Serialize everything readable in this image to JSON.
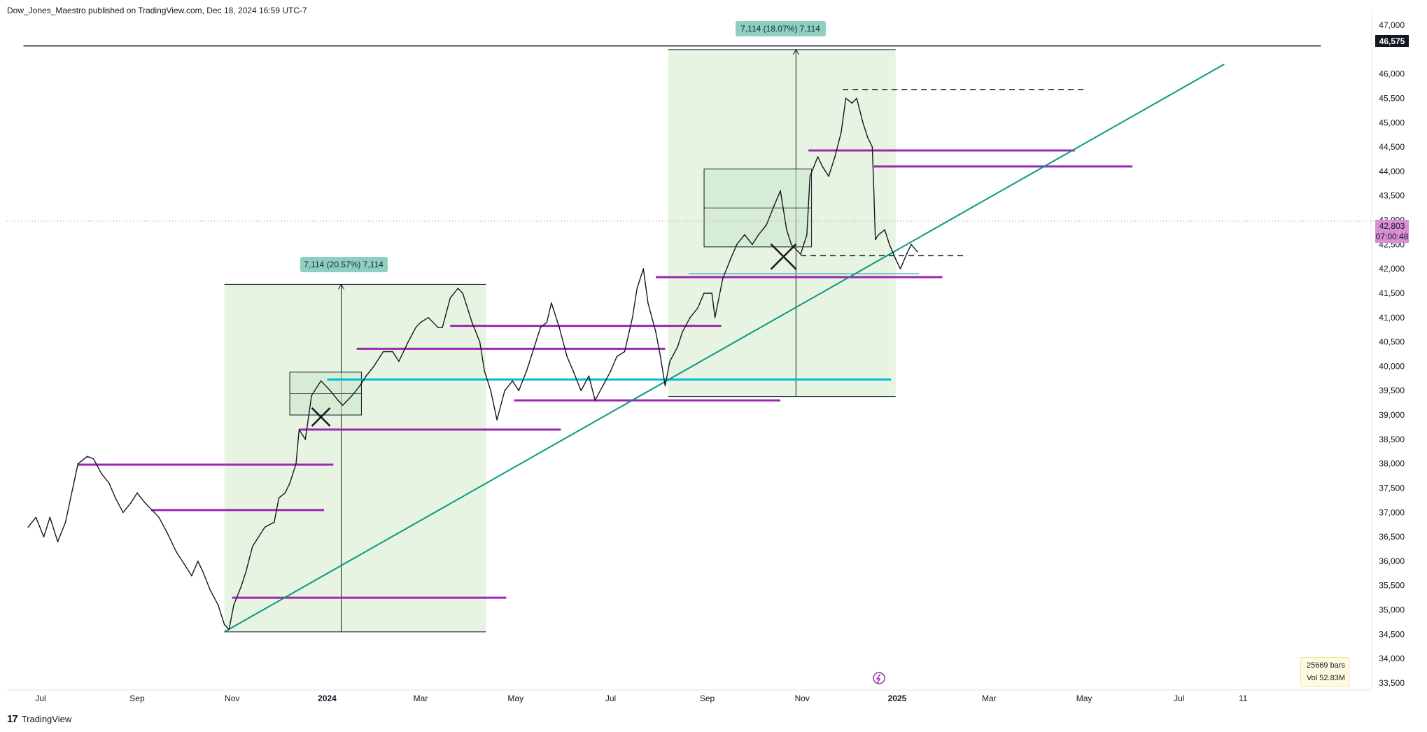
{
  "header": {
    "publisher_line": "Dow_Jones_Maestro published on TradingView.com, Dec 18, 2024 16:59 UTC-7"
  },
  "footer": {
    "brand": "TradingView",
    "logo_text": "17"
  },
  "info_box": {
    "bars": "25669 bars",
    "volume": "Vol 52.83M"
  },
  "price_labels": {
    "top_line": "46,575",
    "last_price": "42,803",
    "countdown": "07:00:48"
  },
  "badges": [
    {
      "text": "7,114 (20.57%) 7,114"
    },
    {
      "text": "7,114 (18.07%) 7,114"
    }
  ],
  "colors": {
    "green_zone": "#dff0d8",
    "purple_level": "#9c27b0",
    "cyan_level": "#00bcd4",
    "trendline": "#089981",
    "badge_bg": "#8fcfc2",
    "last_price_bg": "#d98fd8"
  },
  "chart_data": {
    "type": "line",
    "title": "",
    "xlabel": "",
    "ylabel": "",
    "ylim": [
      33500,
      47000
    ],
    "y_ticks": [
      33500,
      34000,
      34500,
      35000,
      35500,
      36000,
      36500,
      37000,
      37500,
      38000,
      38500,
      39000,
      39500,
      40000,
      40500,
      41000,
      41500,
      42000,
      42500,
      43000,
      43500,
      44000,
      44500,
      45000,
      45500,
      46000,
      47000
    ],
    "y_tick_labels": [
      "33,500",
      "34,000",
      "34,500",
      "35,000",
      "35,500",
      "36,000",
      "36,500",
      "37,000",
      "37,500",
      "38,000",
      "38,500",
      "39,000",
      "39,500",
      "40,000",
      "40,500",
      "41,000",
      "41,500",
      "42,000",
      "42,500",
      "43,000",
      "43,500",
      "44,000",
      "44,500",
      "45,000",
      "45,500",
      "46,000",
      "47,000"
    ],
    "x_labels": [
      "Jul",
      "Sep",
      "Nov",
      "2024",
      "Mar",
      "May",
      "Jul",
      "Sep",
      "Nov",
      "2025",
      "Mar",
      "May",
      "Jul",
      "11"
    ],
    "x_label_dates": [
      "2023-07-01",
      "2023-09-01",
      "2023-11-01",
      "2024-01-01",
      "2024-03-01",
      "2024-05-01",
      "2024-07-01",
      "2024-09-01",
      "2024-11-01",
      "2025-01-01",
      "2025-03-01",
      "2025-05-01",
      "2025-07-01",
      "2025-08-11"
    ],
    "price_series": {
      "name": "",
      "points": [
        [
          "2023-06-23",
          36700
        ],
        [
          "2023-06-28",
          36900
        ],
        [
          "2023-07-03",
          36500
        ],
        [
          "2023-07-07",
          36900
        ],
        [
          "2023-07-12",
          36400
        ],
        [
          "2023-07-17",
          36800
        ],
        [
          "2023-07-21",
          37400
        ],
        [
          "2023-07-25",
          38000
        ],
        [
          "2023-07-31",
          38150
        ],
        [
          "2023-08-04",
          38100
        ],
        [
          "2023-08-09",
          37800
        ],
        [
          "2023-08-14",
          37600
        ],
        [
          "2023-08-18",
          37300
        ],
        [
          "2023-08-23",
          37000
        ],
        [
          "2023-08-28",
          37200
        ],
        [
          "2023-09-01",
          37400
        ],
        [
          "2023-09-06",
          37200
        ],
        [
          "2023-09-12",
          37000
        ],
        [
          "2023-09-15",
          36900
        ],
        [
          "2023-09-20",
          36600
        ],
        [
          "2023-09-26",
          36200
        ],
        [
          "2023-10-02",
          35900
        ],
        [
          "2023-10-06",
          35700
        ],
        [
          "2023-10-10",
          36000
        ],
        [
          "2023-10-13",
          35800
        ],
        [
          "2023-10-18",
          35400
        ],
        [
          "2023-10-23",
          35100
        ],
        [
          "2023-10-27",
          34700
        ],
        [
          "2023-10-30",
          34600
        ],
        [
          "2023-11-02",
          35100
        ],
        [
          "2023-11-07",
          35500
        ],
        [
          "2023-11-10",
          35800
        ],
        [
          "2023-11-14",
          36300
        ],
        [
          "2023-11-17",
          36450
        ],
        [
          "2023-11-22",
          36700
        ],
        [
          "2023-11-28",
          36800
        ],
        [
          "2023-12-01",
          37300
        ],
        [
          "2023-12-05",
          37400
        ],
        [
          "2023-12-08",
          37600
        ],
        [
          "2023-12-12",
          38000
        ],
        [
          "2023-12-14",
          38700
        ],
        [
          "2023-12-18",
          38500
        ],
        [
          "2023-12-22",
          39400
        ],
        [
          "2023-12-28",
          39700
        ],
        [
          "2024-01-03",
          39500
        ],
        [
          "2024-01-08",
          39300
        ],
        [
          "2024-01-11",
          39200
        ],
        [
          "2024-01-17",
          39400
        ],
        [
          "2024-01-22",
          39600
        ],
        [
          "2024-01-26",
          39800
        ],
        [
          "2024-01-31",
          40000
        ],
        [
          "2024-02-06",
          40300
        ],
        [
          "2024-02-12",
          40300
        ],
        [
          "2024-02-16",
          40100
        ],
        [
          "2024-02-22",
          40500
        ],
        [
          "2024-02-27",
          40800
        ],
        [
          "2024-03-01",
          40900
        ],
        [
          "2024-03-06",
          41000
        ],
        [
          "2024-03-12",
          40800
        ],
        [
          "2024-03-15",
          40800
        ],
        [
          "2024-03-20",
          41400
        ],
        [
          "2024-03-25",
          41600
        ],
        [
          "2024-03-28",
          41500
        ],
        [
          "2024-04-03",
          40900
        ],
        [
          "2024-04-08",
          40500
        ],
        [
          "2024-04-11",
          39900
        ],
        [
          "2024-04-15",
          39500
        ],
        [
          "2024-04-19",
          38900
        ],
        [
          "2024-04-24",
          39500
        ],
        [
          "2024-04-29",
          39700
        ],
        [
          "2024-05-03",
          39500
        ],
        [
          "2024-05-08",
          39900
        ],
        [
          "2024-05-13",
          40400
        ],
        [
          "2024-05-17",
          40800
        ],
        [
          "2024-05-21",
          40900
        ],
        [
          "2024-05-24",
          41300
        ],
        [
          "2024-05-29",
          40800
        ],
        [
          "2024-06-03",
          40200
        ],
        [
          "2024-06-07",
          39900
        ],
        [
          "2024-06-12",
          39500
        ],
        [
          "2024-06-17",
          39800
        ],
        [
          "2024-06-21",
          39300
        ],
        [
          "2024-06-26",
          39600
        ],
        [
          "2024-07-01",
          39900
        ],
        [
          "2024-07-05",
          40200
        ],
        [
          "2024-07-10",
          40300
        ],
        [
          "2024-07-15",
          41000
        ],
        [
          "2024-07-18",
          41600
        ],
        [
          "2024-07-22",
          42000
        ],
        [
          "2024-07-25",
          41300
        ],
        [
          "2024-07-30",
          40700
        ],
        [
          "2024-08-02",
          40200
        ],
        [
          "2024-08-05",
          39600
        ],
        [
          "2024-08-08",
          40100
        ],
        [
          "2024-08-13",
          40400
        ],
        [
          "2024-08-16",
          40700
        ],
        [
          "2024-08-21",
          41000
        ],
        [
          "2024-08-26",
          41200
        ],
        [
          "2024-08-30",
          41500
        ],
        [
          "2024-09-04",
          41500
        ],
        [
          "2024-09-06",
          41000
        ],
        [
          "2024-09-11",
          41800
        ],
        [
          "2024-09-16",
          42200
        ],
        [
          "2024-09-20",
          42500
        ],
        [
          "2024-09-25",
          42700
        ],
        [
          "2024-09-30",
          42500
        ],
        [
          "2024-10-04",
          42700
        ],
        [
          "2024-10-09",
          42900
        ],
        [
          "2024-10-14",
          43300
        ],
        [
          "2024-10-18",
          43600
        ],
        [
          "2024-10-22",
          42800
        ],
        [
          "2024-10-25",
          42500
        ],
        [
          "2024-10-31",
          42300
        ],
        [
          "2024-11-04",
          42700
        ],
        [
          "2024-11-06",
          43900
        ],
        [
          "2024-11-11",
          44300
        ],
        [
          "2024-11-14",
          44100
        ],
        [
          "2024-11-18",
          43900
        ],
        [
          "2024-11-22",
          44300
        ],
        [
          "2024-11-26",
          44800
        ],
        [
          "2024-11-29",
          45500
        ],
        [
          "2024-12-03",
          45400
        ],
        [
          "2024-12-06",
          45500
        ],
        [
          "2024-12-10",
          45000
        ],
        [
          "2024-12-13",
          44700
        ],
        [
          "2024-12-16",
          44500
        ],
        [
          "2024-12-17",
          43600
        ],
        [
          "2024-12-18",
          42600
        ],
        [
          "2024-12-20",
          42700
        ],
        [
          "2024-12-24",
          42800
        ],
        [
          "2024-12-27",
          42500
        ],
        [
          "2024-12-31",
          42200
        ],
        [
          "2025-01-03",
          42000
        ],
        [
          "2025-01-07",
          42300
        ],
        [
          "2025-01-10",
          42500
        ],
        [
          "2025-01-14",
          42350
        ]
      ]
    },
    "horizontal_levels": [
      {
        "y": 46575,
        "x0": "2023-06-20",
        "x1": "2025-09-30",
        "style": "solid",
        "color": "black"
      },
      {
        "y": 37980,
        "x0": "2023-07-25",
        "x1": "2024-01-05",
        "color": "purple"
      },
      {
        "y": 37050,
        "x0": "2023-09-10",
        "x1": "2023-12-30",
        "color": "purple"
      },
      {
        "y": 35250,
        "x0": "2023-11-01",
        "x1": "2024-04-25",
        "color": "purple"
      },
      {
        "y": 38700,
        "x0": "2023-12-14",
        "x1": "2024-05-30",
        "color": "purple"
      },
      {
        "y": 40360,
        "x0": "2024-01-20",
        "x1": "2024-08-05",
        "color": "purple"
      },
      {
        "y": 40830,
        "x0": "2024-03-20",
        "x1": "2024-09-10",
        "color": "purple"
      },
      {
        "y": 39300,
        "x0": "2024-04-30",
        "x1": "2024-10-18",
        "color": "purple"
      },
      {
        "y": 41830,
        "x0": "2024-07-30",
        "x1": "2025-01-30",
        "color": "purple"
      },
      {
        "y": 44430,
        "x0": "2024-11-05",
        "x1": "2025-04-25",
        "color": "purple"
      },
      {
        "y": 44100,
        "x0": "2024-12-17",
        "x1": "2025-06-01",
        "color": "purple"
      },
      {
        "y": 39730,
        "x0": "2024-01-01",
        "x1": "2024-12-28",
        "color": "cyan"
      },
      {
        "y": 45680,
        "x0": "2024-11-27",
        "x1": "2025-05-01",
        "style": "dashed",
        "color": "black"
      },
      {
        "y": 42270,
        "x0": "2024-10-31",
        "x1": "2025-02-15",
        "style": "dashed",
        "color": "black"
      },
      {
        "y": 41900,
        "x0": "2024-08-20",
        "x1": "2025-01-15",
        "style": "solid",
        "color": "teal"
      }
    ],
    "trendline": {
      "x0": "2023-10-27",
      "y0": 34550,
      "x1": "2025-07-30",
      "y1": 46200
    },
    "measure_zones": [
      {
        "x0": "2023-10-27",
        "x1": "2024-04-12",
        "y0": 34550,
        "y1": 41680,
        "arrow_x": "2024-01-10",
        "label": "7,114 (20.57%) 7,114"
      },
      {
        "x0": "2024-08-07",
        "x1": "2024-12-31",
        "y0": 39380,
        "y1": 46500,
        "arrow_x": "2024-10-28",
        "label": "7,114 (18.07%) 7,114"
      }
    ],
    "boxes": [
      {
        "x0": "2023-12-08",
        "x1": "2024-01-23",
        "y0": 39000,
        "y1": 39880
      },
      {
        "x0": "2024-08-30",
        "x1": "2024-11-07",
        "y0": 42450,
        "y1": 44050
      }
    ],
    "x_marks": [
      {
        "x": "2023-12-28",
        "y": 38960
      },
      {
        "x": "2024-10-20",
        "y": 42250
      }
    ],
    "grid": false
  }
}
